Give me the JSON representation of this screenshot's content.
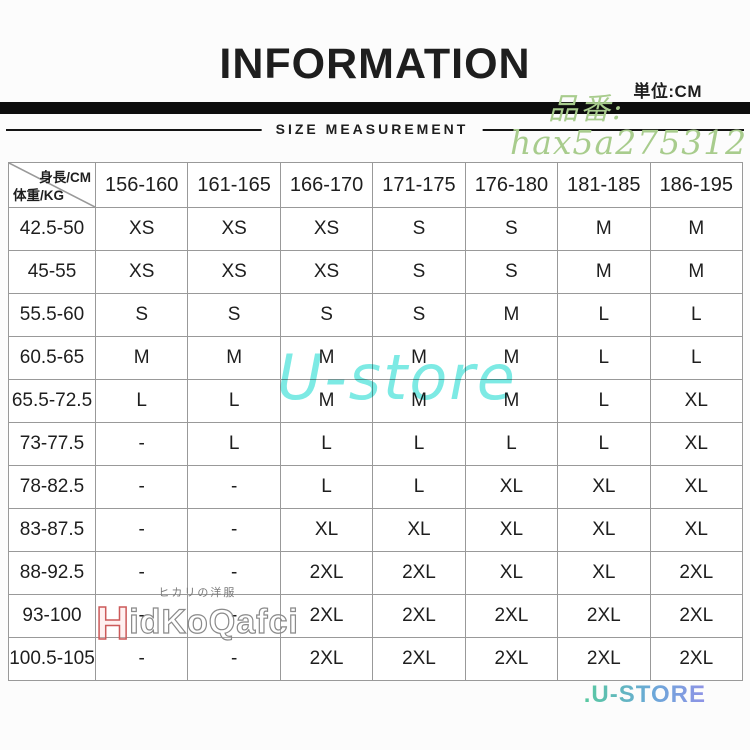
{
  "header": {
    "title": "INFORMATION",
    "unit_label": "単位:CM",
    "banner_label": "SIZE MEASUREMENT"
  },
  "watermarks": {
    "product_code_prefix": "品番:",
    "product_code": "hax5a275312",
    "center_store": "U-store",
    "bottom_store": ".U-STORE",
    "logo_first_letter": "H",
    "logo_rest": "idKoQafci",
    "logo_subtext": "ヒカリの洋服"
  },
  "size_chart": {
    "corner_top_right": "身長/CM",
    "corner_bottom_left": "体重/KG",
    "columns": [
      "156-160",
      "161-165",
      "166-170",
      "171-175",
      "176-180",
      "181-185",
      "186-195"
    ],
    "rows": [
      {
        "label": "42.5-50",
        "values": [
          "XS",
          "XS",
          "XS",
          "S",
          "S",
          "M",
          "M"
        ]
      },
      {
        "label": "45-55",
        "values": [
          "XS",
          "XS",
          "XS",
          "S",
          "S",
          "M",
          "M"
        ]
      },
      {
        "label": "55.5-60",
        "values": [
          "S",
          "S",
          "S",
          "S",
          "M",
          "L",
          "L"
        ]
      },
      {
        "label": "60.5-65",
        "values": [
          "M",
          "M",
          "M",
          "M",
          "M",
          "L",
          "L"
        ]
      },
      {
        "label": "65.5-72.5",
        "values": [
          "L",
          "L",
          "M",
          "M",
          "M",
          "L",
          "XL"
        ]
      },
      {
        "label": "73-77.5",
        "values": [
          "-",
          "L",
          "L",
          "L",
          "L",
          "L",
          "XL"
        ]
      },
      {
        "label": "78-82.5",
        "values": [
          "-",
          "-",
          "L",
          "L",
          "XL",
          "XL",
          "XL"
        ]
      },
      {
        "label": "83-87.5",
        "values": [
          "-",
          "-",
          "XL",
          "XL",
          "XL",
          "XL",
          "XL"
        ]
      },
      {
        "label": "88-92.5",
        "values": [
          "-",
          "-",
          "2XL",
          "2XL",
          "XL",
          "XL",
          "2XL"
        ]
      },
      {
        "label": "93-100",
        "values": [
          "-",
          "-",
          "2XL",
          "2XL",
          "2XL",
          "2XL",
          "2XL"
        ]
      },
      {
        "label": "100.5-105",
        "values": [
          "-",
          "-",
          "2XL",
          "2XL",
          "2XL",
          "2XL",
          "2XL"
        ]
      }
    ]
  },
  "colors": {
    "watermark_green": "#a8cc8d",
    "watermark_cyan": "#5ce5dd",
    "store_gradient_start": "#58c9a0",
    "store_gradient_end": "#8f93e6",
    "logo_red": "#cc5a5a",
    "logo_gray": "#8a8a8a",
    "table_border": "#999999",
    "divider_black": "#0d0d0d"
  }
}
